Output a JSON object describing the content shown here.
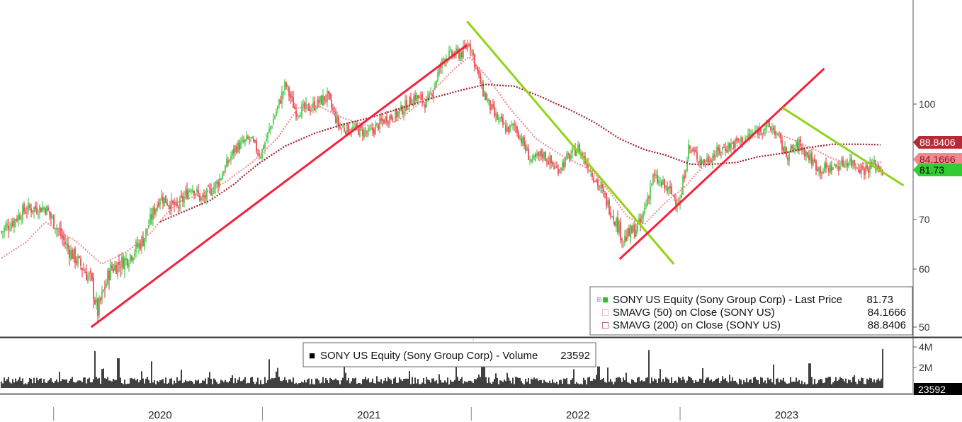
{
  "chart_data": {
    "type": "candlestick-with-volume",
    "price_panel": {
      "y_ticks": [
        "100",
        "70",
        "60",
        "50"
      ],
      "y_tick_values": [
        100,
        70,
        60,
        50
      ],
      "value_tags": [
        {
          "label": "88.8406",
          "value": 88.8406,
          "color": "#b52a34",
          "text_color": "#ffffff"
        },
        {
          "label": "84.1666",
          "value": 84.1666,
          "color": "#f08890",
          "text_color": "#7a1a22"
        },
        {
          "label": "81.73",
          "value": 81.73,
          "color": "#33cc33",
          "text_color": "#000000"
        }
      ],
      "legend": [
        {
          "marker": "■",
          "marker_color": "#2fbf2f",
          "name": "SONY US Equity (Sony Group Corp) - Last Price",
          "value": "81.73"
        },
        {
          "marker": "□",
          "marker_color": "#e88a92",
          "name": "SMAVG (50)  on Close (SONY US)",
          "value": "84.1666"
        },
        {
          "marker": "□",
          "marker_color": "#a11e2a",
          "name": "SMAVG (200)  on Close (SONY US)",
          "value": "88.8406"
        }
      ],
      "series_anchors": {
        "price": [
          [
            2019.74,
            67.5
          ],
          [
            2019.86,
            72.5
          ],
          [
            2019.95,
            72.8
          ],
          [
            2020.06,
            64
          ],
          [
            2020.17,
            58
          ],
          [
            2020.2,
            52.5
          ],
          [
            2020.26,
            60
          ],
          [
            2020.34,
            62
          ],
          [
            2020.42,
            66
          ],
          [
            2020.5,
            75.5
          ],
          [
            2020.58,
            72.5
          ],
          [
            2020.65,
            78
          ],
          [
            2020.7,
            74.5
          ],
          [
            2020.78,
            79
          ],
          [
            2020.86,
            88
          ],
          [
            2020.93,
            90.5
          ],
          [
            2020.98,
            86
          ],
          [
            2021.1,
            105
          ],
          [
            2021.15,
            98
          ],
          [
            2021.22,
            99
          ],
          [
            2021.3,
            102
          ],
          [
            2021.36,
            93.5
          ],
          [
            2021.44,
            93
          ],
          [
            2021.5,
            92
          ],
          [
            2021.58,
            96
          ],
          [
            2021.63,
            97
          ],
          [
            2021.72,
            102
          ],
          [
            2021.78,
            100
          ],
          [
            2021.86,
            112
          ],
          [
            2021.95,
            113
          ],
          [
            2021.98,
            116
          ],
          [
            2022.04,
            104
          ],
          [
            2022.1,
            97
          ],
          [
            2022.16,
            93
          ],
          [
            2022.2,
            94
          ],
          [
            2022.28,
            84
          ],
          [
            2022.33,
            86.5
          ],
          [
            2022.4,
            82
          ],
          [
            2022.5,
            88
          ],
          [
            2022.6,
            78
          ],
          [
            2022.68,
            70
          ],
          [
            2022.72,
            66
          ],
          [
            2022.8,
            69
          ],
          [
            2022.86,
            80
          ],
          [
            2022.93,
            77
          ],
          [
            2022.99,
            74
          ],
          [
            2023.03,
            88
          ],
          [
            2023.1,
            84
          ],
          [
            2023.2,
            88
          ],
          [
            2023.3,
            90.5
          ],
          [
            2023.4,
            94
          ],
          [
            2023.44,
            93
          ],
          [
            2023.5,
            86
          ],
          [
            2023.56,
            89
          ],
          [
            2023.6,
            86
          ],
          [
            2023.66,
            82
          ],
          [
            2023.74,
            83
          ],
          [
            2023.8,
            84.5
          ],
          [
            2023.87,
            82
          ],
          [
            2023.92,
            83.5
          ],
          [
            2023.96,
            81.73
          ]
        ],
        "sma50": [
          [
            2019.74,
            62.2
          ],
          [
            2019.86,
            65.5
          ],
          [
            2019.95,
            69.5
          ],
          [
            2020.1,
            65.5
          ],
          [
            2020.22,
            61
          ],
          [
            2020.34,
            63.5
          ],
          [
            2020.46,
            67.5
          ],
          [
            2020.58,
            74
          ],
          [
            2020.7,
            76
          ],
          [
            2020.82,
            79
          ],
          [
            2020.94,
            84
          ],
          [
            2021.06,
            90.5
          ],
          [
            2021.16,
            99
          ],
          [
            2021.26,
            99.5
          ],
          [
            2021.36,
            96.5
          ],
          [
            2021.5,
            94
          ],
          [
            2021.64,
            95.5
          ],
          [
            2021.78,
            102
          ],
          [
            2021.92,
            109.5
          ],
          [
            2021.98,
            112
          ],
          [
            2022.08,
            106
          ],
          [
            2022.18,
            98.5
          ],
          [
            2022.3,
            90.5
          ],
          [
            2022.42,
            86
          ],
          [
            2022.56,
            82
          ],
          [
            2022.66,
            76
          ],
          [
            2022.74,
            70.5
          ],
          [
            2022.82,
            69
          ],
          [
            2022.92,
            74
          ],
          [
            2023.02,
            78
          ],
          [
            2023.12,
            84
          ],
          [
            2023.22,
            87
          ],
          [
            2023.32,
            90.5
          ],
          [
            2023.42,
            92.5
          ],
          [
            2023.52,
            90.5
          ],
          [
            2023.62,
            88
          ],
          [
            2023.72,
            85
          ],
          [
            2023.82,
            83.5
          ],
          [
            2023.96,
            84.1666
          ]
        ],
        "sma200": [
          [
            2020.5,
            69.5
          ],
          [
            2020.62,
            72
          ],
          [
            2020.74,
            74.5
          ],
          [
            2020.86,
            78.5
          ],
          [
            2020.98,
            84
          ],
          [
            2021.1,
            88.5
          ],
          [
            2021.24,
            92
          ],
          [
            2021.38,
            94.5
          ],
          [
            2021.52,
            96.5
          ],
          [
            2021.66,
            99
          ],
          [
            2021.8,
            101.5
          ],
          [
            2021.94,
            103.5
          ],
          [
            2022.06,
            105
          ],
          [
            2022.2,
            104.5
          ],
          [
            2022.34,
            101.5
          ],
          [
            2022.46,
            98.5
          ],
          [
            2022.58,
            95
          ],
          [
            2022.7,
            90.5
          ],
          [
            2022.82,
            87.5
          ],
          [
            2022.92,
            86
          ],
          [
            2023.04,
            83.5
          ],
          [
            2023.14,
            83.5
          ],
          [
            2023.26,
            84
          ],
          [
            2023.36,
            85.5
          ],
          [
            2023.48,
            86.5
          ],
          [
            2023.6,
            88
          ],
          [
            2023.72,
            89
          ],
          [
            2023.84,
            89
          ],
          [
            2023.96,
            88.8406
          ]
        ]
      },
      "trendlines": [
        {
          "color": "#f5213d",
          "points": [
            [
              2020.17,
              50
            ],
            [
              2021.97,
              115
            ]
          ]
        },
        {
          "color": "#8fd416",
          "points": [
            [
              2021.97,
              121
            ],
            [
              2022.96,
              61
            ]
          ]
        },
        {
          "color": "#f5213d",
          "points": [
            [
              2022.7,
              62
            ],
            [
              2023.68,
              109
            ]
          ]
        },
        {
          "color": "#8fd416",
          "points": [
            [
              2023.48,
              99
            ],
            [
              2024.06,
              78
            ]
          ]
        }
      ]
    },
    "volume_panel": {
      "y_ticks": [
        "4M",
        "2M"
      ],
      "y_tick_values": [
        4,
        2
      ],
      "unit": "M",
      "legend": {
        "marker": "■",
        "name": "SONY US Equity (Sony Group Corp) - Volume",
        "value": "23592"
      },
      "last_tag": "23592",
      "spikes": [
        [
          2020.19,
          3.6
        ],
        [
          2020.3,
          2.9
        ],
        [
          2020.46,
          2.6
        ],
        [
          2021.02,
          2.8
        ],
        [
          2022.04,
          3.9
        ],
        [
          2022.05,
          3.0
        ],
        [
          2022.6,
          2.1
        ],
        [
          2022.84,
          3.7
        ],
        [
          2023.44,
          2.3
        ],
        [
          2023.61,
          2.4
        ],
        [
          2023.96,
          3.8
        ]
      ]
    },
    "x_axis": {
      "labels": [
        "2020",
        "2021",
        "2022",
        "2023"
      ],
      "label_values": [
        2020.5,
        2021.5,
        2022.5,
        2023.5
      ],
      "tick_values": [
        2019.99,
        2020.99,
        2021.99,
        2022.99
      ]
    }
  }
}
